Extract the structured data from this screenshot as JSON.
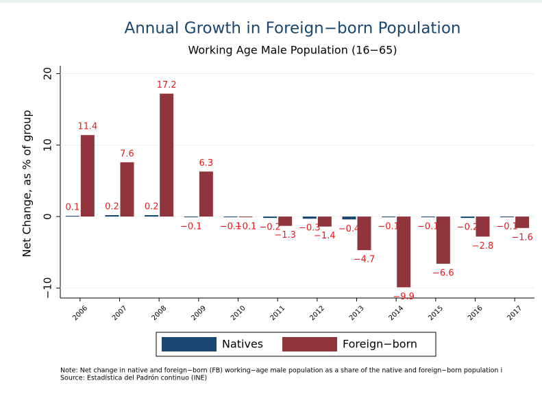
{
  "chart_data": {
    "type": "bar",
    "title": "Annual Growth in Foreign−born Population",
    "subtitle": "Working Age Male Population (16−65)",
    "y_label": "Net Change, as % of group",
    "categories": [
      "2006",
      "2007",
      "2008",
      "2009",
      "2010",
      "2011",
      "2012",
      "2013",
      "2014",
      "2015",
      "2016",
      "2017"
    ],
    "series": [
      {
        "name": "Natives",
        "color": "#1a476f",
        "values": [
          0.1,
          0.2,
          0.2,
          -0.1,
          -0.1,
          -0.2,
          -0.3,
          -0.4,
          -0.1,
          -0.1,
          -0.2,
          -0.1
        ],
        "value_labels": [
          "0.1",
          "0.2",
          "0.2",
          "−0.1",
          "−0.1",
          "−0.2",
          "−0.3",
          "−0.4",
          "−0.1",
          "−0.1",
          "−0.2",
          "−0.1"
        ]
      },
      {
        "name": "Foreign−born",
        "color": "#90353b",
        "values": [
          11.4,
          7.6,
          17.2,
          6.3,
          -0.1,
          -1.3,
          -1.4,
          -4.7,
          -9.9,
          -6.6,
          -2.8,
          -1.6
        ],
        "value_labels": [
          "11.4",
          "7.6",
          "17.2",
          "6.3",
          "−0.1",
          "−1.3",
          "−1.4",
          "−4.7",
          "−9.9",
          "−6.6",
          "−2.8",
          "−1.6"
        ]
      }
    ],
    "label_color": "#e8191c",
    "ylim": [
      -11.4,
      21.1
    ],
    "yticks": [
      {
        "value": -10,
        "label": "−10"
      },
      0,
      10,
      20
    ],
    "grid": true,
    "legend": "bottom",
    "notes": [
      "Note: Net change in native and foreign−born (FB) working−age male population as a share of the native and foreign−born population i",
      "Source: Estadística del Padrón continuo (INE)"
    ]
  }
}
